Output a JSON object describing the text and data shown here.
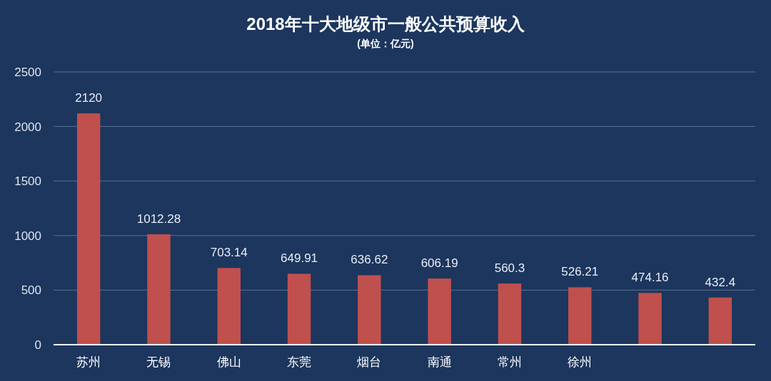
{
  "chart_data": {
    "type": "bar",
    "title": "2018年十大地级市一般公共预算收入",
    "subtitle": "(单位：亿元)",
    "categories": [
      "苏州",
      "无锡",
      "佛山",
      "东莞",
      "烟台",
      "南通",
      "常州",
      "徐州",
      null,
      null
    ],
    "values": [
      2120,
      1012.28,
      703.14,
      649.91,
      636.62,
      606.19,
      560.3,
      526.21,
      474.16,
      432.4
    ],
    "color": "#c0504d",
    "ylim": [
      0,
      2500
    ],
    "yticks": [
      0,
      500,
      1000,
      1500,
      2000,
      2500
    ],
    "grid": "y",
    "data_labels": true
  }
}
